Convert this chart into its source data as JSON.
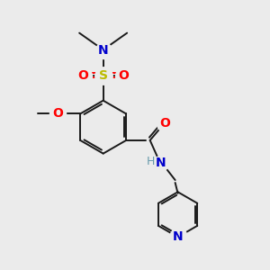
{
  "background_color": "#ebebeb",
  "bond_color": "#1a1a1a",
  "colors": {
    "N": "#0000cc",
    "O": "#ff0000",
    "S": "#bbbb00",
    "C": "#1a1a1a",
    "H": "#6699aa"
  },
  "figsize": [
    3.0,
    3.0
  ],
  "dpi": 100,
  "lw": 1.4
}
